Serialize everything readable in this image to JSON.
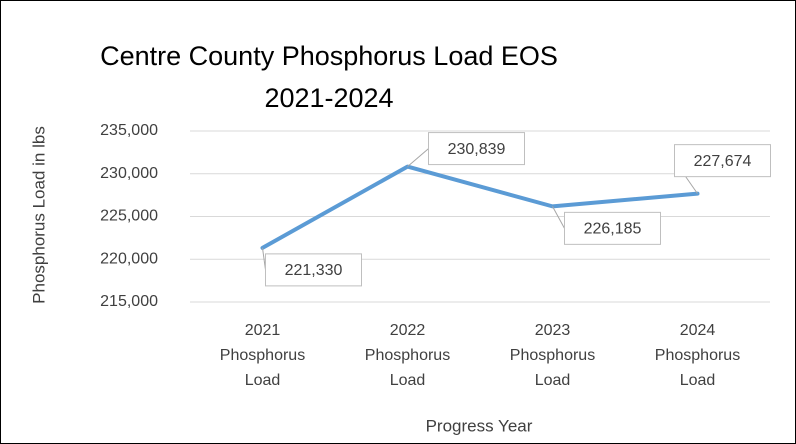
{
  "chart_data": {
    "type": "line",
    "title": [
      "Centre County Phosphorus Load EOS",
      "2021-2024"
    ],
    "x_label": "Progress Year",
    "y_label": "Phosphorus Load in lbs",
    "categories": [
      "2021 Phosphorus Load",
      "2022 Phosphorus Load",
      "2023 Phosphorus Load",
      "2024 Phosphorus Load"
    ],
    "values": [
      221330,
      230839,
      226185,
      227674
    ],
    "value_labels": [
      "221,330",
      "230,839",
      "226,185",
      "227,674"
    ],
    "color": "#5b9bd5",
    "ylim": [
      215000,
      235000
    ],
    "yticks": [
      {
        "value": 215000,
        "label": "215,000"
      },
      {
        "value": 220000,
        "label": "220,000"
      },
      {
        "value": 225000,
        "label": "225,000"
      },
      {
        "value": 230000,
        "label": "230,000"
      },
      {
        "value": 235000,
        "label": "235,000"
      }
    ],
    "grid": true
  }
}
